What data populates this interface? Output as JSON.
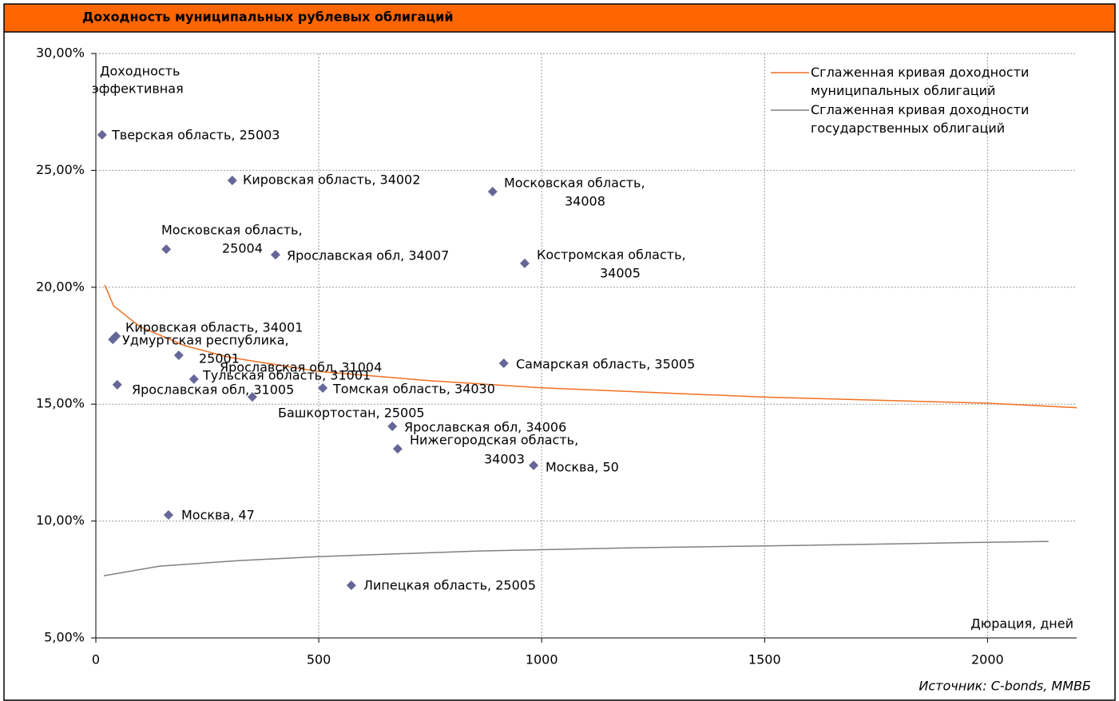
{
  "chart_data": {
    "type": "scatter",
    "title": "Доходность муниципальных рублевых облигаций",
    "y_label": [
      "Доходность",
      "эффективная"
    ],
    "x_label": "Дюрация, дней",
    "source": "Источник: C-bonds, ММВБ",
    "xlim": [
      0,
      2200
    ],
    "xticks": [
      0,
      500,
      1000,
      1500,
      2000
    ],
    "ylim": [
      5,
      30
    ],
    "yticks": [
      {
        "value": 5,
        "label": "5,00%"
      },
      {
        "value": 10,
        "label": "10,00%"
      },
      {
        "value": 15,
        "label": "15,00%"
      },
      {
        "value": 20,
        "label": "20,00%"
      },
      {
        "value": 25,
        "label": "25,00%"
      },
      {
        "value": 30,
        "label": "30,00%"
      }
    ],
    "grid": true,
    "legend": "top-right",
    "series": [
      {
        "name": "Сглаженная кривая доходности муниципальных облигаций",
        "color": "#f07020",
        "type": "line",
        "x": [
          20,
          40,
          100,
          200,
          300,
          500,
          750,
          1000,
          1500,
          2000,
          2200
        ],
        "values": [
          20.1,
          19.2,
          18.3,
          17.5,
          17.0,
          16.4,
          16.0,
          15.7,
          15.3,
          15.04,
          14.85
        ]
      },
      {
        "name": "Сглаженная кривая доходности государственных облигаций",
        "color": "#808080",
        "type": "line",
        "x": [
          18,
          143,
          322,
          502,
          860,
          1218,
          1576,
          1935,
          2137
        ],
        "values": [
          7.66,
          8.07,
          8.31,
          8.48,
          8.72,
          8.86,
          8.96,
          9.07,
          9.13
        ]
      }
    ],
    "points": {
      "color": "#666699",
      "x": [
        14,
        306,
        890,
        158,
        403,
        962,
        45,
        38,
        186,
        915,
        220,
        48,
        509,
        351,
        665,
        677,
        982,
        163,
        573
      ],
      "values": [
        26.52,
        24.57,
        24.09,
        21.63,
        21.39,
        21.02,
        17.91,
        17.77,
        17.09,
        16.75,
        16.07,
        15.83,
        15.69,
        15.31,
        14.05,
        13.09,
        12.38,
        10.26,
        7.25
      ],
      "labels": [
        [
          "Тверская область, 25003"
        ],
        [
          "Кировская область, 34002"
        ],
        [
          "Московская область,",
          "34008"
        ],
        [
          "Московская область,",
          "25004"
        ],
        [
          "Ярославская обл, 34007"
        ],
        [
          "Костромская область,",
          "34005"
        ],
        [
          "Кировская область, 34001"
        ],
        [
          "Удмуртская республика,",
          "25001"
        ],
        [
          "Ярославская обл, 31004"
        ],
        [
          "Самарская область, 35005"
        ],
        [
          "Тульская область, 31001"
        ],
        [
          "Ярославская обл, 31005"
        ],
        [
          "Томская область, 34030"
        ],
        [
          "Башкортостан, 25005"
        ],
        [
          "Ярославская обл, 34006"
        ],
        [
          "Нижегородская область,",
          "34003"
        ],
        [
          "Москва, 50"
        ],
        [
          "Москва, 47"
        ],
        [
          "Липецкая область, 25005"
        ]
      ]
    }
  }
}
